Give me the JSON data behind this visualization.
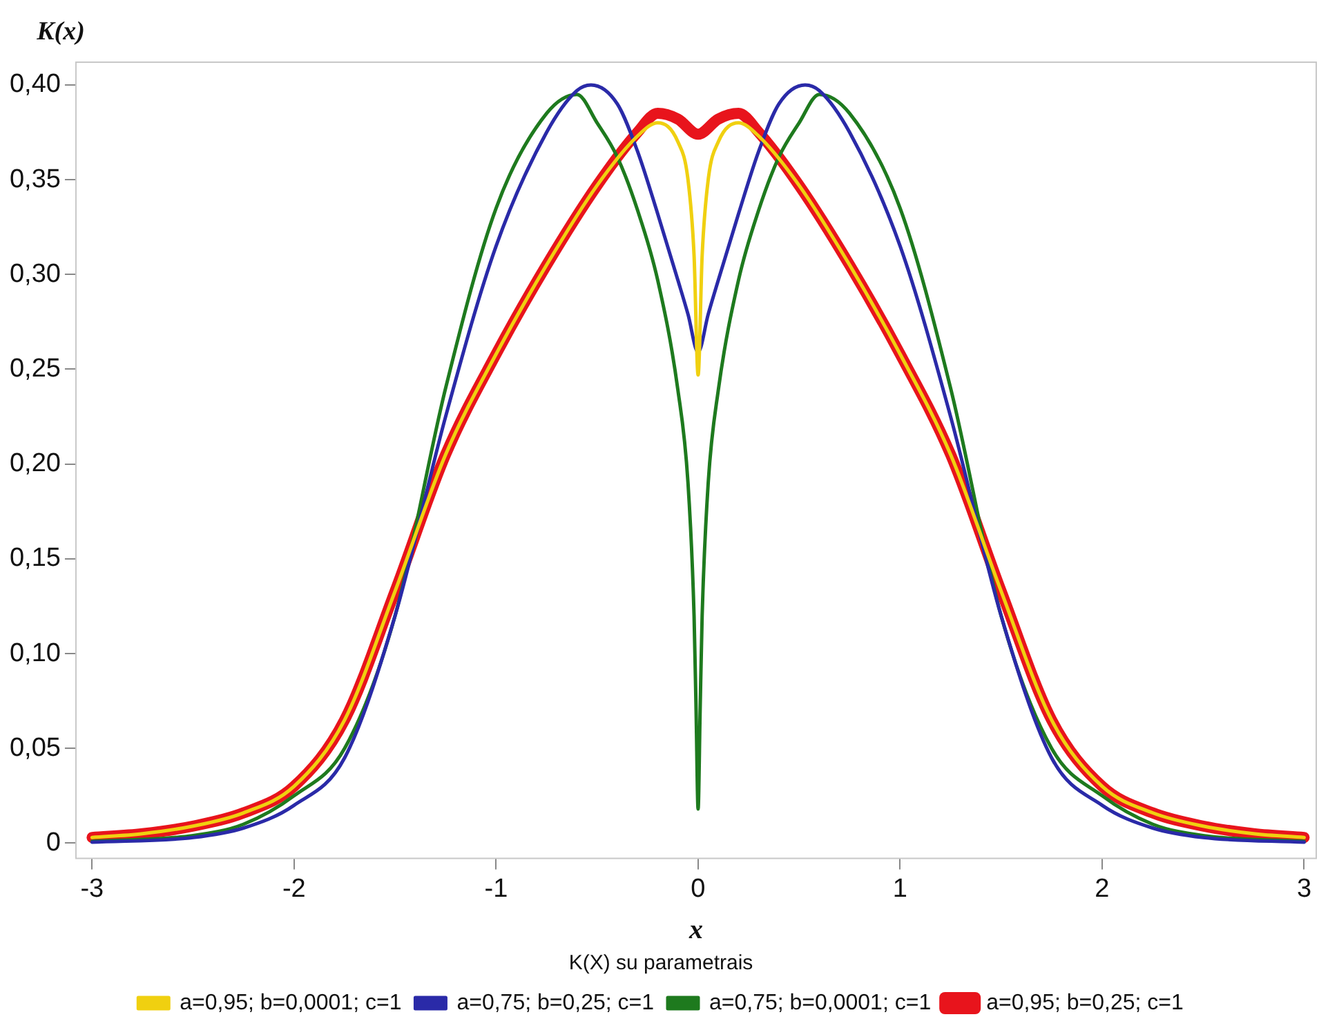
{
  "chart_data": {
    "type": "line",
    "xlabel": "x",
    "ylabel": "K(x)",
    "legend_title": "K(X) su parametrais",
    "legend": "bottom",
    "grid": false,
    "marker": "none",
    "line_style": "solid",
    "xlim": [
      -3.08,
      3.06
    ],
    "xticks": [
      -3,
      -2,
      -1,
      0,
      1,
      2,
      3
    ],
    "ylim": [
      -0.008,
      0.412
    ],
    "yticks": [
      {
        "value": 0,
        "label": "0"
      },
      {
        "value": 0.05,
        "label": "0,05"
      },
      {
        "value": 0.1,
        "label": "0,10"
      },
      {
        "value": 0.15,
        "label": "0,15"
      },
      {
        "value": 0.2,
        "label": "0,20"
      },
      {
        "value": 0.25,
        "label": "0,25"
      },
      {
        "value": 0.3,
        "label": "0,30"
      },
      {
        "value": 0.35,
        "label": "0,35"
      },
      {
        "value": 0.4,
        "label": "0,40"
      }
    ],
    "series": [
      {
        "name": "a=0,95; b=0,25; c=1",
        "color": "#e8141c",
        "x": [
          -3,
          -2.75,
          -2.5,
          -2.25,
          -2,
          -1.75,
          -1.5,
          -1.25,
          -1,
          -0.75,
          -0.5,
          -0.3,
          -0.2,
          -0.1,
          0,
          0.1,
          0.2,
          0.3,
          0.5,
          0.75,
          1,
          1.25,
          1.5,
          1.75,
          2,
          2.25,
          2.5,
          2.75,
          3
        ],
        "values": [
          0.003,
          0.005,
          0.009,
          0.016,
          0.03,
          0.065,
          0.133,
          0.205,
          0.258,
          0.305,
          0.347,
          0.375,
          0.385,
          0.382,
          0.374,
          0.382,
          0.385,
          0.375,
          0.347,
          0.305,
          0.258,
          0.205,
          0.133,
          0.065,
          0.03,
          0.016,
          0.009,
          0.005,
          0.003
        ]
      },
      {
        "name": "a=0,75; b=0,0001; c=1",
        "color": "#1e7a1e",
        "x": [
          -3,
          -2.5,
          -2.25,
          -2,
          -1.75,
          -1.5,
          -1.25,
          -1,
          -0.75,
          -0.6,
          -0.5,
          -0.4,
          -0.3,
          -0.2,
          -0.1,
          -0.05,
          -0.02,
          -0.01,
          0,
          0.01,
          0.02,
          0.05,
          0.1,
          0.2,
          0.3,
          0.4,
          0.5,
          0.6,
          0.75,
          1,
          1.25,
          1.5,
          1.75,
          2,
          2.25,
          2.5,
          3
        ],
        "values": [
          0.001,
          0.004,
          0.01,
          0.025,
          0.05,
          0.12,
          0.24,
          0.335,
          0.385,
          0.395,
          0.38,
          0.362,
          0.334,
          0.297,
          0.239,
          0.19,
          0.12,
          0.07,
          0.018,
          0.07,
          0.12,
          0.19,
          0.239,
          0.297,
          0.334,
          0.362,
          0.38,
          0.395,
          0.385,
          0.335,
          0.24,
          0.12,
          0.05,
          0.025,
          0.01,
          0.004,
          0.001
        ]
      },
      {
        "name": "a=0,75; b=0,25; c=1",
        "color": "#2a2aa8",
        "x": [
          -3,
          -2.5,
          -2.25,
          -2,
          -1.75,
          -1.5,
          -1.25,
          -1,
          -0.75,
          -0.6,
          -0.53,
          -0.4,
          -0.3,
          -0.2,
          -0.1,
          -0.05,
          0,
          0.05,
          0.1,
          0.2,
          0.3,
          0.4,
          0.53,
          0.6,
          0.75,
          1,
          1.25,
          1.5,
          1.75,
          2,
          2.25,
          2.5,
          3
        ],
        "values": [
          0.0005,
          0.003,
          0.008,
          0.02,
          0.045,
          0.12,
          0.225,
          0.315,
          0.375,
          0.397,
          0.4,
          0.39,
          0.365,
          0.332,
          0.297,
          0.279,
          0.259,
          0.279,
          0.297,
          0.332,
          0.365,
          0.39,
          0.4,
          0.397,
          0.375,
          0.315,
          0.225,
          0.12,
          0.045,
          0.02,
          0.008,
          0.003,
          0.0005
        ]
      },
      {
        "name": "a=0,95; b=0,0001; c=1",
        "color": "#f0d010",
        "x": [
          -3,
          -2.75,
          -2.5,
          -2.25,
          -2,
          -1.75,
          -1.5,
          -1.25,
          -1,
          -0.75,
          -0.5,
          -0.3,
          -0.2,
          -0.1,
          -0.05,
          -0.02,
          0,
          0.02,
          0.05,
          0.1,
          0.2,
          0.3,
          0.5,
          0.75,
          1,
          1.25,
          1.5,
          1.75,
          2,
          2.25,
          2.5,
          2.75,
          3
        ],
        "values": [
          0.003,
          0.005,
          0.009,
          0.016,
          0.03,
          0.065,
          0.133,
          0.205,
          0.258,
          0.305,
          0.347,
          0.373,
          0.38,
          0.37,
          0.35,
          0.31,
          0.247,
          0.31,
          0.35,
          0.37,
          0.38,
          0.373,
          0.347,
          0.305,
          0.258,
          0.205,
          0.133,
          0.065,
          0.03,
          0.016,
          0.009,
          0.005,
          0.003
        ]
      }
    ]
  }
}
